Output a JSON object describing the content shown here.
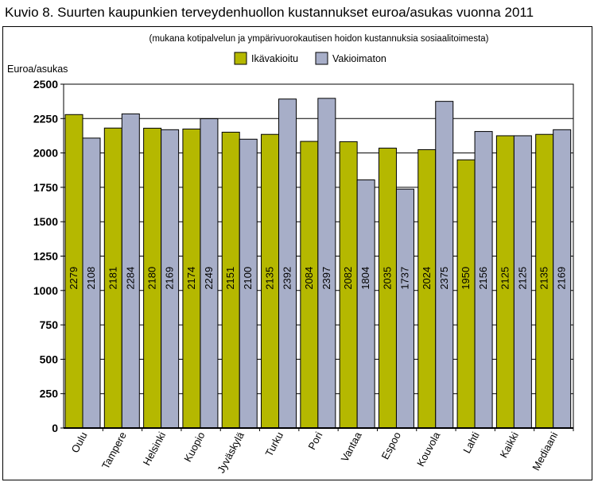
{
  "title": "Kuvio 8. Suurten kaupunkien terveydenhuollon kustannukset euroa/asukas vuonna 2011",
  "chart_data": {
    "type": "bar",
    "subtitle": "(mukana kotipalvelun ja ympärivuorokautisen hoidon kustannuksia sosiaalitoimesta)",
    "ylabel": "Euroa/asukas",
    "xlabel": "",
    "ylim": [
      0,
      2500
    ],
    "yticks": [
      0,
      250,
      500,
      750,
      1000,
      1250,
      1500,
      1750,
      2000,
      2250,
      2500
    ],
    "grid": "horizontal",
    "legend_position": "top",
    "categories": [
      "Oulu",
      "Tampere",
      "Helsinki",
      "Kuopio",
      "Jyväskylä",
      "Turku",
      "Pori",
      "Vantaa",
      "Espoo",
      "Kouvola",
      "Lahti",
      "Kaikki",
      "Mediaani"
    ],
    "series": [
      {
        "name": "Ikävakioitu",
        "color": "#b5b800",
        "values": [
          2279,
          2181,
          2180,
          2174,
          2151,
          2135,
          2084,
          2082,
          2035,
          2024,
          1950,
          2125,
          2135
        ]
      },
      {
        "name": "Vakioimaton",
        "color": "#a7aec8",
        "values": [
          2108,
          2284,
          2169,
          2249,
          2100,
          2392,
          2397,
          1804,
          1737,
          2375,
          2156,
          2125,
          2169
        ]
      }
    ]
  }
}
